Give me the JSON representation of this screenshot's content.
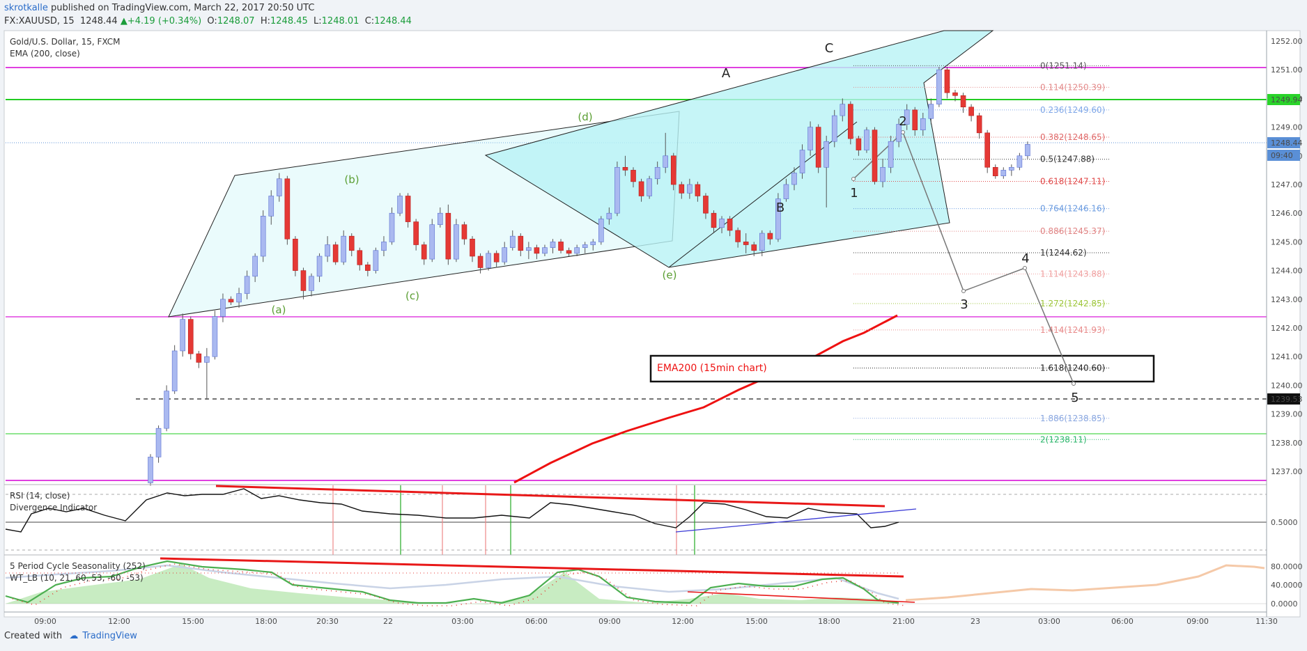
{
  "header": {
    "author": "skrotkalle",
    "published_text": "published on TradingView.com, March 22, 2017 20:50 UTC",
    "symbol": "FX:XAUUSD, 15",
    "last_price": "1248.44",
    "arrow": "▲",
    "change": "+4.19 (+0.34%)",
    "o_label": "O:",
    "o_value": "1248.07",
    "h_label": "H:",
    "h_value": "1248.45",
    "l_label": "L:",
    "l_value": "1248.01",
    "c_label": "C:",
    "c_value": "1248.44"
  },
  "footer": {
    "created_with": "Created with",
    "brand": "TradingView"
  },
  "colors": {
    "up_body": "#aab9f0",
    "down_body": "#e53935",
    "channel_fill": "#b8f2f5",
    "magenta": "#e040e0",
    "green": "#22cc22",
    "ema": "#ee1111",
    "wave_green": "#5a9e32"
  },
  "chart_data": [
    {
      "type": "candlestick",
      "title": "Gold/U.S. Dollar, 15, FXCM",
      "indicator_label": "EMA (200, close)",
      "ylim": [
        1236.5,
        1252.5
      ],
      "y_ticks": [
        "1237.00",
        "1238.00",
        "1239.00",
        "1240.00",
        "1241.00",
        "1242.00",
        "1243.00",
        "1244.00",
        "1245.00",
        "1246.00",
        "1247.00",
        "1248.00",
        "1249.00",
        "1250.00",
        "1251.00",
        "1252.00"
      ],
      "x_ticks": [
        "09:00",
        "12:00",
        "15:00",
        "18:00",
        "20:30",
        "22",
        "03:00",
        "06:00",
        "09:00",
        "12:00",
        "15:00",
        "18:00",
        "21:00",
        "23",
        "03:00",
        "06:00",
        "09:00",
        "11:30"
      ],
      "axis_badges": [
        "1249.94",
        "1248.44",
        "09:40",
        "1239.53"
      ],
      "candles": [
        [
          1236.6,
          1237.6,
          1236.5,
          1237.5
        ],
        [
          1237.5,
          1238.6,
          1237.3,
          1238.5
        ],
        [
          1238.5,
          1240.0,
          1238.4,
          1239.8
        ],
        [
          1239.8,
          1241.4,
          1239.7,
          1241.2
        ],
        [
          1241.2,
          1242.5,
          1241.0,
          1242.3
        ],
        [
          1242.3,
          1242.4,
          1240.9,
          1241.1
        ],
        [
          1241.1,
          1241.2,
          1240.6,
          1240.8
        ],
        [
          1240.8,
          1241.3,
          1239.5,
          1241.0
        ],
        [
          1241.0,
          1242.6,
          1240.9,
          1242.4
        ],
        [
          1242.4,
          1243.2,
          1242.2,
          1243.0
        ],
        [
          1243.0,
          1243.1,
          1242.8,
          1242.9
        ],
        [
          1242.9,
          1243.4,
          1242.7,
          1243.2
        ],
        [
          1243.2,
          1244.0,
          1243.0,
          1243.8
        ],
        [
          1243.8,
          1244.6,
          1243.6,
          1244.5
        ],
        [
          1244.5,
          1246.1,
          1244.3,
          1245.9
        ],
        [
          1245.9,
          1246.8,
          1245.6,
          1246.6
        ],
        [
          1246.6,
          1247.4,
          1246.4,
          1247.2
        ],
        [
          1247.2,
          1247.3,
          1244.9,
          1245.1
        ],
        [
          1245.1,
          1245.2,
          1243.8,
          1244.0
        ],
        [
          1244.0,
          1244.1,
          1243.0,
          1243.3
        ],
        [
          1243.3,
          1243.9,
          1243.1,
          1243.8
        ],
        [
          1243.8,
          1244.6,
          1243.6,
          1244.5
        ],
        [
          1244.5,
          1245.2,
          1244.3,
          1244.9
        ],
        [
          1244.9,
          1245.0,
          1244.2,
          1244.3
        ],
        [
          1244.3,
          1245.4,
          1244.2,
          1245.2
        ],
        [
          1245.2,
          1245.3,
          1244.5,
          1244.7
        ],
        [
          1244.7,
          1244.8,
          1244.0,
          1244.2
        ],
        [
          1244.2,
          1244.3,
          1243.8,
          1244.0
        ],
        [
          1244.0,
          1244.8,
          1243.9,
          1244.7
        ],
        [
          1244.7,
          1245.2,
          1244.5,
          1245.0
        ],
        [
          1245.0,
          1246.2,
          1244.9,
          1246.0
        ],
        [
          1246.0,
          1246.7,
          1245.9,
          1246.6
        ],
        [
          1246.6,
          1246.7,
          1245.5,
          1245.7
        ],
        [
          1245.7,
          1245.8,
          1244.7,
          1244.9
        ],
        [
          1244.9,
          1245.0,
          1244.2,
          1244.4
        ],
        [
          1244.4,
          1245.8,
          1244.3,
          1245.6
        ],
        [
          1245.6,
          1246.2,
          1245.5,
          1246.0
        ],
        [
          1246.0,
          1246.3,
          1244.2,
          1244.4
        ],
        [
          1244.4,
          1245.8,
          1244.3,
          1245.6
        ],
        [
          1245.6,
          1245.7,
          1244.9,
          1245.1
        ],
        [
          1245.1,
          1245.2,
          1244.3,
          1244.5
        ],
        [
          1244.5,
          1244.6,
          1243.9,
          1244.1
        ],
        [
          1244.1,
          1244.7,
          1244.0,
          1244.6
        ],
        [
          1244.6,
          1244.7,
          1244.1,
          1244.3
        ],
        [
          1244.3,
          1245.0,
          1244.2,
          1244.8
        ],
        [
          1244.8,
          1245.4,
          1244.7,
          1245.2
        ],
        [
          1245.2,
          1245.3,
          1244.5,
          1244.7
        ],
        [
          1244.7,
          1245.0,
          1244.4,
          1244.8
        ],
        [
          1244.8,
          1244.9,
          1244.4,
          1244.6
        ],
        [
          1244.6,
          1244.9,
          1244.5,
          1244.8
        ],
        [
          1244.8,
          1245.1,
          1244.6,
          1245.0
        ],
        [
          1245.0,
          1245.1,
          1244.6,
          1244.7
        ],
        [
          1244.7,
          1244.8,
          1244.5,
          1244.6
        ],
        [
          1244.6,
          1244.9,
          1244.5,
          1244.8
        ],
        [
          1244.8,
          1245.0,
          1244.6,
          1244.9
        ],
        [
          1244.9,
          1245.1,
          1244.7,
          1245.0
        ],
        [
          1245.0,
          1245.9,
          1244.9,
          1245.8
        ],
        [
          1245.8,
          1246.2,
          1245.6,
          1246.0
        ],
        [
          1246.0,
          1247.8,
          1245.9,
          1247.6
        ],
        [
          1247.6,
          1248.0,
          1247.3,
          1247.5
        ],
        [
          1247.5,
          1247.6,
          1246.9,
          1247.1
        ],
        [
          1247.1,
          1247.2,
          1246.4,
          1246.6
        ],
        [
          1246.6,
          1247.3,
          1246.5,
          1247.2
        ],
        [
          1247.2,
          1247.8,
          1247.0,
          1247.6
        ],
        [
          1247.6,
          1248.8,
          1247.4,
          1248.0
        ],
        [
          1248.0,
          1248.1,
          1246.8,
          1247.0
        ],
        [
          1247.0,
          1247.1,
          1246.5,
          1246.7
        ],
        [
          1246.7,
          1247.2,
          1246.5,
          1247.0
        ],
        [
          1247.0,
          1247.1,
          1246.4,
          1246.6
        ],
        [
          1246.6,
          1246.7,
          1245.8,
          1246.0
        ],
        [
          1246.0,
          1246.1,
          1245.3,
          1245.5
        ],
        [
          1245.5,
          1245.9,
          1245.3,
          1245.8
        ],
        [
          1245.8,
          1245.9,
          1245.2,
          1245.4
        ],
        [
          1245.4,
          1245.5,
          1244.8,
          1245.0
        ],
        [
          1245.0,
          1245.3,
          1244.6,
          1244.9
        ],
        [
          1244.9,
          1245.0,
          1244.5,
          1244.7
        ],
        [
          1244.7,
          1245.4,
          1244.5,
          1245.3
        ],
        [
          1245.3,
          1245.4,
          1244.9,
          1245.1
        ],
        [
          1245.1,
          1246.7,
          1245.0,
          1246.5
        ],
        [
          1246.5,
          1247.2,
          1246.4,
          1247.0
        ],
        [
          1247.0,
          1247.6,
          1246.8,
          1247.4
        ],
        [
          1247.4,
          1248.4,
          1247.2,
          1248.2
        ],
        [
          1248.2,
          1249.2,
          1248.0,
          1249.0
        ],
        [
          1249.0,
          1249.1,
          1247.4,
          1247.6
        ],
        [
          1247.6,
          1248.7,
          1246.2,
          1248.5
        ],
        [
          1248.5,
          1249.6,
          1248.3,
          1249.4
        ],
        [
          1249.4,
          1250.0,
          1249.2,
          1249.8
        ],
        [
          1249.8,
          1249.9,
          1248.4,
          1248.6
        ],
        [
          1248.6,
          1248.7,
          1248.0,
          1248.2
        ],
        [
          1248.2,
          1249.0,
          1248.1,
          1248.9
        ],
        [
          1248.9,
          1249.0,
          1247.0,
          1247.1
        ],
        [
          1247.1,
          1247.9,
          1246.9,
          1247.6
        ],
        [
          1247.6,
          1248.7,
          1247.4,
          1248.5
        ],
        [
          1248.5,
          1249.3,
          1248.3,
          1249.1
        ],
        [
          1249.1,
          1249.8,
          1248.9,
          1249.6
        ],
        [
          1249.6,
          1249.7,
          1248.7,
          1248.9
        ],
        [
          1248.9,
          1249.5,
          1248.7,
          1249.3
        ],
        [
          1249.3,
          1250.0,
          1249.1,
          1249.8
        ],
        [
          1249.8,
          1251.1,
          1249.7,
          1251.0
        ],
        [
          1251.0,
          1251.1,
          1250.0,
          1250.2
        ],
        [
          1250.2,
          1250.3,
          1249.9,
          1250.1
        ],
        [
          1250.1,
          1250.2,
          1249.5,
          1249.7
        ],
        [
          1249.7,
          1249.8,
          1249.2,
          1249.4
        ],
        [
          1249.4,
          1249.5,
          1248.6,
          1248.8
        ],
        [
          1248.8,
          1248.9,
          1247.4,
          1247.6
        ],
        [
          1247.6,
          1247.7,
          1247.2,
          1247.3
        ],
        [
          1247.3,
          1247.6,
          1247.2,
          1247.5
        ],
        [
          1247.5,
          1247.7,
          1247.3,
          1247.6
        ],
        [
          1247.6,
          1248.1,
          1247.5,
          1248.0
        ],
        [
          1248.0,
          1248.5,
          1247.9,
          1248.4
        ]
      ],
      "ema_label": "EMA200 (15min chart)",
      "fib_levels": [
        {
          "label": "0(1251.14)",
          "value": 1251.14,
          "color": "#555555"
        },
        {
          "label": "0.114(1250.39)",
          "value": 1250.39,
          "color": "#e38a8a"
        },
        {
          "label": "0.236(1249.60)",
          "value": 1249.6,
          "color": "#7fa7e8"
        },
        {
          "label": "0.382(1248.65)",
          "value": 1248.65,
          "color": "#e06a6a"
        },
        {
          "label": "0.5(1247.88)",
          "value": 1247.88,
          "color": "#333333"
        },
        {
          "label": "0.618(1247.11)",
          "value": 1247.11,
          "color": "#e04848"
        },
        {
          "label": "0.764(1246.16)",
          "value": 1246.16,
          "color": "#6a9be0"
        },
        {
          "label": "0.886(1245.37)",
          "value": 1245.37,
          "color": "#e08484"
        },
        {
          "label": "1(1244.62)",
          "value": 1244.62,
          "color": "#333333"
        },
        {
          "label": "1.114(1243.88)",
          "value": 1243.88,
          "color": "#f0a0a0"
        },
        {
          "label": "1.272(1242.85)",
          "value": 1242.85,
          "color": "#9ec63a"
        },
        {
          "label": "1.414(1241.93)",
          "value": 1241.93,
          "color": "#e88a8a"
        },
        {
          "label": "1.618(1240.60)",
          "value": 1240.6,
          "color": "#222222"
        },
        {
          "label": "1.886(1238.85)",
          "value": 1238.85,
          "color": "#8aa7e0"
        },
        {
          "label": "2(1238.11)",
          "value": 1238.11,
          "color": "#2bb66b"
        }
      ],
      "wave_labels": {
        "small": [
          "(a)",
          "(b)",
          "(c)",
          "(d)",
          "(e)"
        ],
        "big": [
          "A",
          "B",
          "C"
        ],
        "projection": [
          "1",
          "2",
          "3",
          "4",
          "5"
        ]
      }
    },
    {
      "type": "line",
      "title": "RSI (14, close)",
      "sub_title": "Divergence Indicator",
      "y_ticks": [
        "0.5000"
      ]
    },
    {
      "type": "area",
      "title": "5 Period Cycle Seasonality (252)",
      "sub_title": "WT_LB (10, 21, 60, 53, -60, -53)",
      "y_ticks": [
        "80.0000",
        "40.0000",
        "0.0000"
      ]
    }
  ]
}
